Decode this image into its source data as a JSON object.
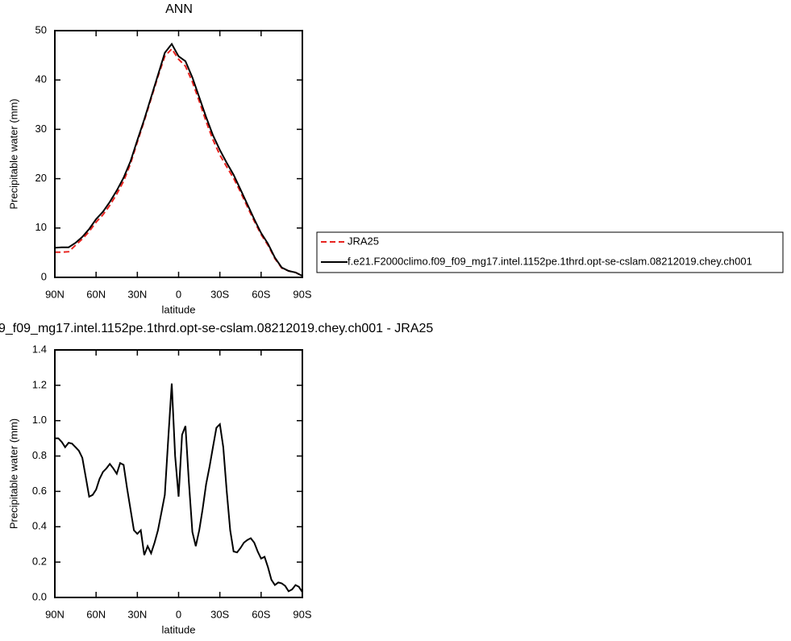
{
  "chart_data": [
    {
      "type": "line",
      "title": "ANN",
      "xlabel": "latitude",
      "ylabel": "Precipitable water (mm)",
      "xlim": [
        90,
        -90
      ],
      "xticks": [
        {
          "value": 90,
          "label": "90N"
        },
        {
          "value": 60,
          "label": "60N"
        },
        {
          "value": 30,
          "label": "30N"
        },
        0,
        {
          "value": -30,
          "label": "30S"
        },
        {
          "value": -60,
          "label": "60S"
        },
        {
          "value": -90,
          "label": "90S"
        }
      ],
      "ylim": [
        0,
        50
      ],
      "yticks": [
        0,
        10,
        20,
        30,
        40,
        50
      ],
      "legend": "right",
      "x": [
        90,
        85,
        80,
        75,
        70,
        65,
        60,
        55,
        50,
        45,
        40,
        35,
        30,
        25,
        20,
        15,
        10,
        5,
        0,
        -5,
        -10,
        -15,
        -20,
        -25,
        -30,
        -35,
        -40,
        -45,
        -50,
        -55,
        -60,
        -65,
        -70,
        -75,
        -80,
        -85,
        -90
      ],
      "series": [
        {
          "name": "JRA25",
          "color": "#e8231f",
          "style": "dashed",
          "values": [
            5.1,
            5.1,
            5.2,
            6.5,
            7.8,
            9.3,
            11.2,
            12.7,
            14.6,
            16.9,
            19.5,
            23,
            27.4,
            31.7,
            36.2,
            40.7,
            44.8,
            46.3,
            44.2,
            42.8,
            39.6,
            35.7,
            31.6,
            27.9,
            24.8,
            22.4,
            20.1,
            17.3,
            14.3,
            11.4,
            8.7,
            6.5,
            3.8,
            1.9,
            1.3,
            1.0,
            0.3
          ]
        },
        {
          "name": "f.e21.F2000climo.f09_f09_mg17.intel.1152pe.1thrd.opt-se-cslam.08212019.chey.ch001",
          "color": "#000000",
          "style": "solid",
          "values": [
            6,
            6.1,
            6.1,
            7,
            8.2,
            9.8,
            11.8,
            13.3,
            15.3,
            17.6,
            20.2,
            23.5,
            27.8,
            32,
            36.5,
            41,
            45.5,
            47.3,
            44.8,
            43.8,
            40.5,
            36.5,
            32.5,
            28.8,
            25.8,
            23.2,
            20.8,
            17.8,
            14.8,
            11.8,
            9.0,
            6.8,
            4,
            2,
            1.3,
            1.0,
            0.3
          ]
        }
      ]
    },
    {
      "type": "line",
      "title": "9_f09_mg17.intel.1152pe.1thrd.opt-se-cslam.08212019.chey.ch001 - JRA25",
      "xlabel": "latitude",
      "ylabel": "Precipitable water (mm)",
      "xlim": [
        90,
        -90
      ],
      "xticks": [
        {
          "value": 90,
          "label": "90N"
        },
        {
          "value": 60,
          "label": "60N"
        },
        {
          "value": 30,
          "label": "30N"
        },
        0,
        {
          "value": -30,
          "label": "30S"
        },
        {
          "value": -60,
          "label": "60S"
        },
        {
          "value": -90,
          "label": "90S"
        }
      ],
      "ylim": [
        0,
        1.4
      ],
      "yticks": [
        {
          "value": 0,
          "label": "0.0"
        },
        0.2,
        0.4,
        0.6,
        0.8,
        {
          "value": 1,
          "label": "1.0"
        },
        1.2,
        1.4
      ],
      "color": "#000000",
      "x": [
        90,
        87.5,
        85,
        82.5,
        80,
        77.5,
        75,
        72.5,
        70,
        67.5,
        65,
        62.5,
        60,
        57.5,
        55,
        52.5,
        50,
        47.5,
        45,
        42.5,
        40,
        37.5,
        35,
        32.5,
        30,
        27.5,
        25,
        22.5,
        20,
        17.5,
        15,
        12.5,
        10,
        7.5,
        5,
        2.5,
        0,
        -2.5,
        -5,
        -7.5,
        -10,
        -12.5,
        -15,
        -17.5,
        -20,
        -22.5,
        -25,
        -27.5,
        -30,
        -32.5,
        -35,
        -37.5,
        -40,
        -42.5,
        -45,
        -47.5,
        -50,
        -52.5,
        -55,
        -57.5,
        -60,
        -62.5,
        -65,
        -67.5,
        -70,
        -72.5,
        -75,
        -77.5,
        -80,
        -82.5,
        -85,
        -87.5,
        -90
      ],
      "values": [
        0.9,
        0.9,
        0.88,
        0.85,
        0.875,
        0.87,
        0.85,
        0.83,
        0.79,
        0.68,
        0.57,
        0.58,
        0.61,
        0.67,
        0.71,
        0.73,
        0.755,
        0.73,
        0.7,
        0.76,
        0.75,
        0.62,
        0.5,
        0.38,
        0.36,
        0.38,
        0.24,
        0.29,
        0.25,
        0.31,
        0.38,
        0.48,
        0.58,
        0.9,
        1.21,
        0.8,
        0.57,
        0.92,
        0.97,
        0.65,
        0.37,
        0.29,
        0.38,
        0.5,
        0.64,
        0.74,
        0.85,
        0.96,
        0.98,
        0.85,
        0.6,
        0.38,
        0.26,
        0.255,
        0.28,
        0.31,
        0.325,
        0.335,
        0.31,
        0.26,
        0.22,
        0.23,
        0.17,
        0.1,
        0.07,
        0.085,
        0.08,
        0.065,
        0.035,
        0.045,
        0.07,
        0.06,
        0.03
      ]
    }
  ]
}
